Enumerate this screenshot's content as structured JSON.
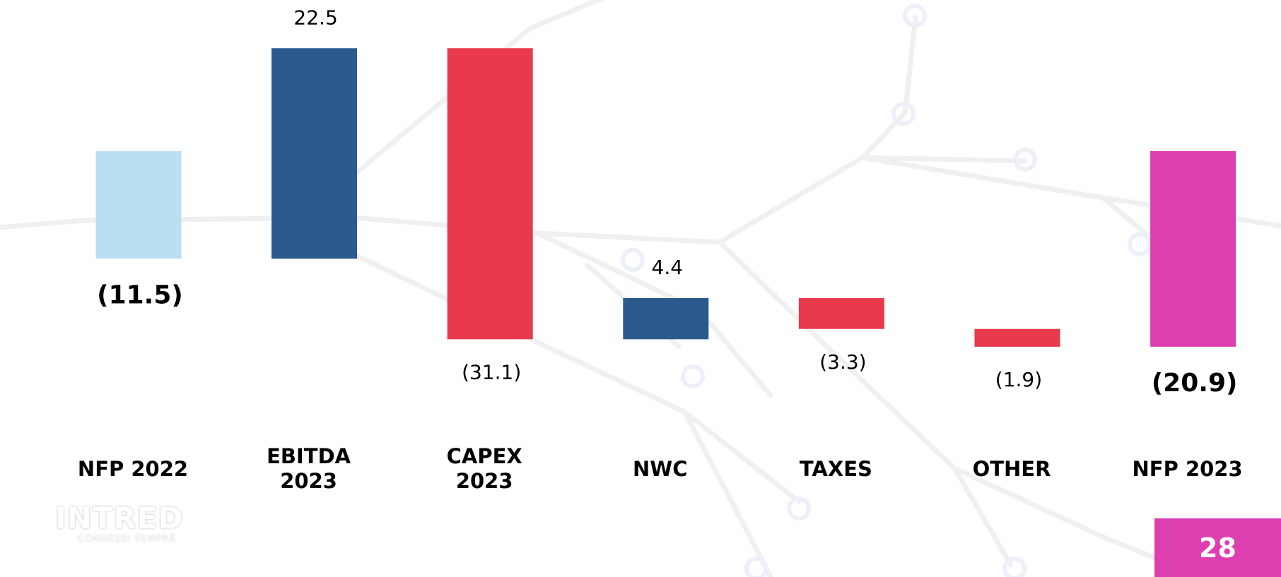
{
  "chart_data": {
    "type": "waterfall",
    "categories": [
      "NFP 2022",
      "EBITDA\n2023",
      "CAPEX\n2023",
      "NWC",
      "TAXES",
      "OTHER",
      "NFP 2023"
    ],
    "values": [
      -11.5,
      22.5,
      -31.1,
      4.4,
      -3.3,
      -1.9,
      -20.9
    ],
    "value_labels": [
      "(11.5)",
      "22.5",
      "(31.1)",
      "4.4",
      "(3.3)",
      "(1.9)",
      "(20.9)"
    ],
    "is_total": [
      true,
      false,
      false,
      false,
      false,
      false,
      true
    ],
    "colors": [
      "#bbdff2",
      "#2b5b8e",
      "#e8394d",
      "#2b5b8e",
      "#e8394d",
      "#e8394d",
      "#dd3fb0"
    ]
  },
  "footer": {
    "logo": "INTRED",
    "tagline": "CONNESSI SEMPRE",
    "page_number": "28"
  }
}
